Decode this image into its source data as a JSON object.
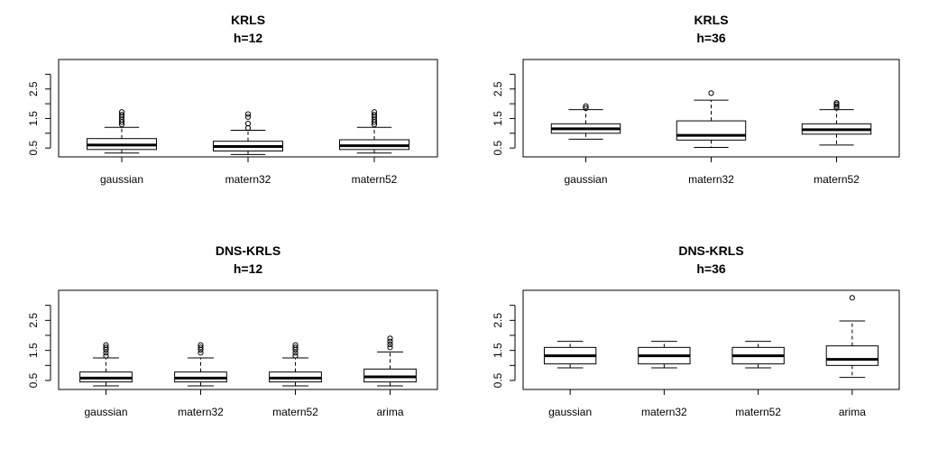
{
  "chart_data": [
    {
      "type": "boxplot",
      "title": [
        "KRLS",
        "h=12"
      ],
      "categories": [
        "gaussian",
        "matern32",
        "matern52"
      ],
      "ylim": [
        0.2,
        3.5
      ],
      "yticks": [
        "0.5",
        "1.5",
        "2.5"
      ],
      "boxes": [
        {
          "name": "gaussian",
          "whisker_low": 0.33,
          "q1": 0.45,
          "median": 0.6,
          "q3": 0.82,
          "whisker_high": 1.2,
          "outliers": [
            1.3,
            1.38,
            1.46,
            1.55,
            1.63,
            1.72
          ]
        },
        {
          "name": "matern32",
          "whisker_low": 0.28,
          "q1": 0.4,
          "median": 0.55,
          "q3": 0.73,
          "whisker_high": 1.1,
          "outliers": [
            1.18,
            1.33,
            1.55,
            1.65
          ]
        },
        {
          "name": "matern52",
          "whisker_low": 0.33,
          "q1": 0.45,
          "median": 0.58,
          "q3": 0.78,
          "whisker_high": 1.2,
          "outliers": [
            1.3,
            1.38,
            1.46,
            1.55,
            1.63,
            1.72
          ]
        }
      ]
    },
    {
      "type": "boxplot",
      "title": [
        "KRLS",
        "h=36"
      ],
      "categories": [
        "gaussian",
        "matern32",
        "matern52"
      ],
      "ylim": [
        0.2,
        3.5
      ],
      "yticks": [
        "0.5",
        "1.5",
        "2.5"
      ],
      "boxes": [
        {
          "name": "gaussian",
          "whisker_low": 0.8,
          "q1": 1.0,
          "median": 1.15,
          "q3": 1.32,
          "whisker_high": 1.8,
          "outliers": [
            1.85,
            1.92
          ]
        },
        {
          "name": "matern32",
          "whisker_low": 0.52,
          "q1": 0.77,
          "median": 0.93,
          "q3": 1.42,
          "whisker_high": 2.12,
          "outliers": [
            2.36
          ]
        },
        {
          "name": "matern52",
          "whisker_low": 0.6,
          "q1": 0.97,
          "median": 1.12,
          "q3": 1.32,
          "whisker_high": 1.8,
          "outliers": [
            1.86,
            1.92,
            1.98,
            2.03
          ]
        }
      ]
    },
    {
      "type": "boxplot",
      "title": [
        "DNS-KRLS",
        "h=12"
      ],
      "categories": [
        "gaussian",
        "matern32",
        "matern52",
        "arima"
      ],
      "ylim": [
        0.2,
        3.5
      ],
      "yticks": [
        "0.5",
        "1.5",
        "2.5"
      ],
      "boxes": [
        {
          "name": "gaussian",
          "whisker_low": 0.32,
          "q1": 0.45,
          "median": 0.58,
          "q3": 0.78,
          "whisker_high": 1.25,
          "outliers": [
            1.32,
            1.42,
            1.52,
            1.6,
            1.68
          ]
        },
        {
          "name": "matern32",
          "whisker_low": 0.32,
          "q1": 0.45,
          "median": 0.58,
          "q3": 0.78,
          "whisker_high": 1.25,
          "outliers": [
            1.42,
            1.52,
            1.6,
            1.68
          ]
        },
        {
          "name": "matern52",
          "whisker_low": 0.32,
          "q1": 0.45,
          "median": 0.58,
          "q3": 0.78,
          "whisker_high": 1.25,
          "outliers": [
            1.32,
            1.42,
            1.52,
            1.6,
            1.68
          ]
        },
        {
          "name": "arima",
          "whisker_low": 0.32,
          "q1": 0.45,
          "median": 0.62,
          "q3": 0.88,
          "whisker_high": 1.45,
          "outliers": [
            1.6,
            1.7,
            1.8,
            1.9
          ]
        }
      ]
    },
    {
      "type": "boxplot",
      "title": [
        "DNS-KRLS",
        "h=36"
      ],
      "categories": [
        "gaussian",
        "matern32",
        "matern52",
        "arima"
      ],
      "ylim": [
        0.2,
        3.5
      ],
      "yticks": [
        "0.5",
        "1.5",
        "2.5"
      ],
      "boxes": [
        {
          "name": "gaussian",
          "whisker_low": 0.92,
          "q1": 1.05,
          "median": 1.32,
          "q3": 1.6,
          "whisker_high": 1.8,
          "outliers": []
        },
        {
          "name": "matern32",
          "whisker_low": 0.92,
          "q1": 1.05,
          "median": 1.32,
          "q3": 1.6,
          "whisker_high": 1.8,
          "outliers": []
        },
        {
          "name": "matern52",
          "whisker_low": 0.92,
          "q1": 1.05,
          "median": 1.32,
          "q3": 1.6,
          "whisker_high": 1.8,
          "outliers": []
        },
        {
          "name": "arima",
          "whisker_low": 0.6,
          "q1": 1.0,
          "median": 1.2,
          "q3": 1.65,
          "whisker_high": 2.48,
          "outliers": [
            3.25
          ]
        }
      ]
    }
  ]
}
